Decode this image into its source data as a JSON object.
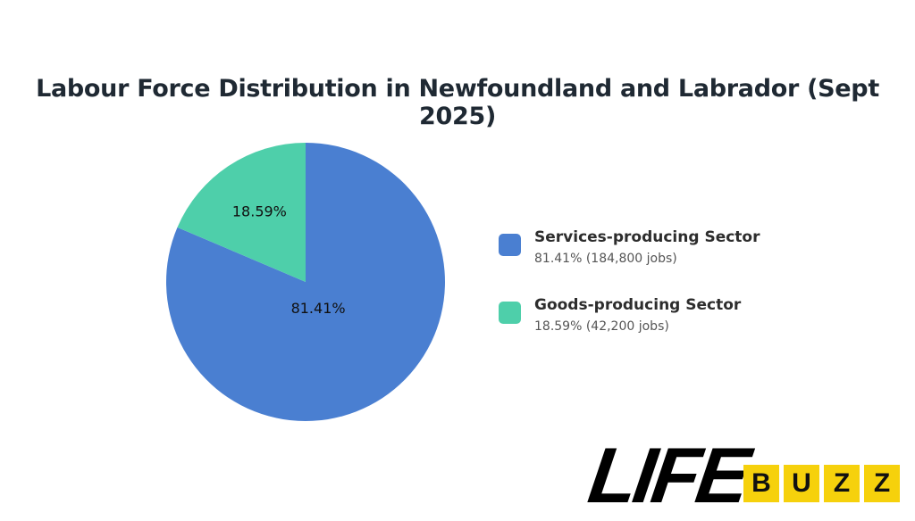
{
  "chart_data": {
    "type": "pie",
    "title": "Labour Force Distribution in Newfoundland and Labrador (Sept 2025)",
    "categories": [
      "Services-producing Sector",
      "Goods-producing Sector"
    ],
    "values": [
      81.41,
      18.59
    ],
    "jobs": [
      184800,
      42200
    ],
    "slice_labels": [
      "81.41%",
      "18.59%"
    ],
    "colors": [
      "#4a7fd1",
      "#4ecfaa"
    ],
    "legend_position": "right",
    "legend": [
      {
        "name": "Services-producing Sector",
        "detail": "81.41% (184,800 jobs)"
      },
      {
        "name": "Goods-producing Sector",
        "detail": "18.59% (42,200 jobs)"
      }
    ]
  },
  "logo": {
    "text": "LIFE BUZZ",
    "life": "LIFE",
    "buzz": [
      "B",
      "U",
      "Z",
      "Z"
    ]
  }
}
